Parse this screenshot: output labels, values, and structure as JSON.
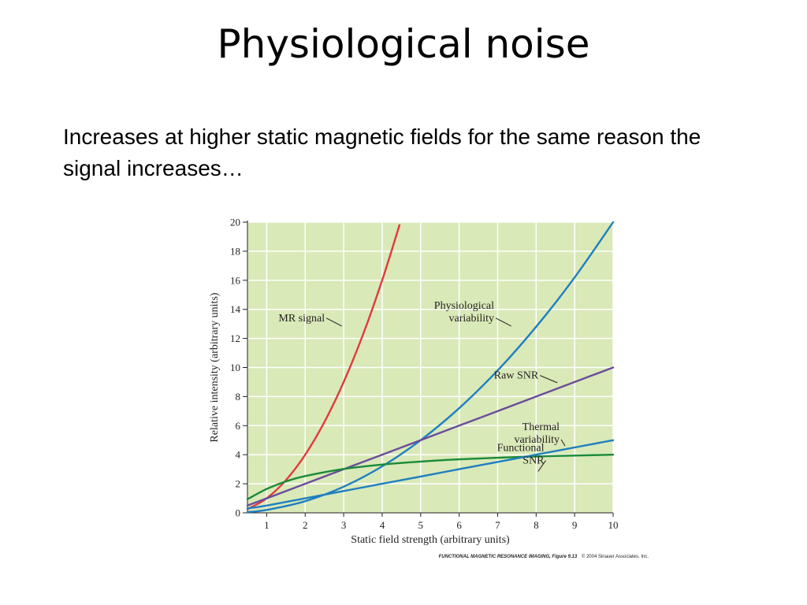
{
  "slide": {
    "title": "Physiological noise",
    "body": "Increases at higher static magnetic fields for the same reason the signal increases…"
  },
  "chart_data": {
    "type": "line",
    "xlabel": "Static field strength (arbitrary units)",
    "ylabel": "Relative intensity (arbitrary units)",
    "xlim": [
      0.5,
      10
    ],
    "ylim": [
      0,
      20
    ],
    "x_ticks": [
      1,
      2,
      3,
      4,
      5,
      6,
      7,
      8,
      9,
      10
    ],
    "y_ticks": [
      0,
      2,
      4,
      6,
      8,
      10,
      12,
      14,
      16,
      18,
      20
    ],
    "grid": true,
    "colors": {
      "plot_background": "#d9e9b8",
      "grid": "#ffffff",
      "mr_signal": "#e03a3e",
      "physiological_variability": "#1f7fc0",
      "raw_snr": "#6a4c9c",
      "thermal_variability": "#1a8a3a",
      "functional_snr": "#1f7fc0"
    },
    "series": [
      {
        "name": "MR signal",
        "key": "mr_signal",
        "x": [
          0.5,
          1,
          1.5,
          2,
          2.5,
          3,
          3.5,
          4,
          4.45
        ],
        "y": [
          0.25,
          1.0,
          2.25,
          4.0,
          6.25,
          9.0,
          12.25,
          16.0,
          19.8
        ]
      },
      {
        "name": "Physiological variability",
        "key": "physiological_variability",
        "x": [
          0.5,
          1,
          2,
          3,
          4,
          5,
          6,
          7,
          8,
          9,
          10
        ],
        "y": [
          0.05,
          0.2,
          0.8,
          1.8,
          3.2,
          5.0,
          7.2,
          9.8,
          12.8,
          16.2,
          20.0
        ]
      },
      {
        "name": "Raw SNR",
        "key": "raw_snr",
        "x": [
          0.5,
          1,
          2,
          3,
          4,
          5,
          6,
          7,
          8,
          9,
          10
        ],
        "y": [
          0.5,
          1.0,
          2.0,
          3.0,
          4.0,
          5.0,
          6.0,
          7.0,
          8.0,
          9.0,
          10.0
        ]
      },
      {
        "name": "Thermal variability",
        "key": "thermal_variability",
        "x": [
          0.5,
          1,
          1.5,
          2,
          3,
          4,
          5,
          6,
          7,
          8,
          9,
          10
        ],
        "y": [
          0.94,
          1.64,
          2.16,
          2.53,
          3.02,
          3.32,
          3.53,
          3.68,
          3.79,
          3.88,
          3.94,
          4.0
        ]
      },
      {
        "name": "Functional SNR",
        "key": "functional_snr",
        "x": [
          0.5,
          1,
          2,
          3,
          4,
          5,
          6,
          7,
          8,
          9,
          10
        ],
        "y": [
          0.3,
          0.5,
          1.0,
          1.5,
          2.0,
          2.5,
          3.0,
          3.5,
          4.0,
          4.5,
          5.0
        ]
      }
    ],
    "annotations": [
      {
        "key": "mr_signal",
        "lines": [
          "MR signal"
        ],
        "leader_from": [
          2.55,
          13.4
        ],
        "leader_to": [
          2.95,
          12.85
        ]
      },
      {
        "key": "physiological_variability",
        "lines": [
          "Physiological",
          "variability"
        ],
        "leader_from": [
          6.95,
          13.4
        ],
        "leader_to": [
          7.35,
          12.85
        ]
      },
      {
        "key": "raw_snr",
        "lines": [
          "Raw SNR"
        ],
        "leader_from": [
          8.1,
          9.45
        ],
        "leader_to": [
          8.55,
          8.95
        ]
      },
      {
        "key": "thermal_variability",
        "lines": [
          "Thermal",
          "variability"
        ],
        "leader_from": [
          8.65,
          5.05
        ],
        "leader_to": [
          8.75,
          4.6
        ]
      },
      {
        "key": "functional_snr",
        "lines": [
          "Functional",
          "SNR"
        ],
        "leader_from": [
          8.25,
          3.6
        ],
        "leader_to": [
          8.05,
          2.85
        ]
      }
    ],
    "credit": {
      "book": "FUNCTIONAL MAGNETIC RESONANCE IMAGING, Figure 9.13",
      "copyright": "© 2004 Sinauer Associates, Inc."
    }
  }
}
